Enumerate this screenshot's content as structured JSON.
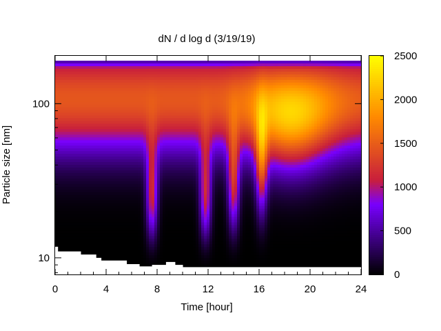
{
  "chart_data": {
    "type": "heatmap",
    "title": "dN / d log d (3/19/19)",
    "xlabel": "Time [hour]",
    "ylabel": "Particle size [nm]",
    "xlim": [
      0,
      24
    ],
    "ylim_nm": [
      7.8,
      190
    ],
    "y_scale": "log",
    "x_ticks": [
      0,
      4,
      8,
      12,
      16,
      20,
      24
    ],
    "x_tick_labels": [
      "0",
      "4",
      "8",
      "12",
      "16",
      "20",
      "24"
    ],
    "y_ticks": [
      10,
      100
    ],
    "y_tick_labels": [
      "10",
      "100"
    ],
    "colorbar": {
      "range": [
        0,
        2500
      ],
      "ticks": [
        0,
        500,
        1000,
        1500,
        2000,
        2500
      ],
      "tick_labels": [
        "0",
        "500",
        "1000",
        "1500",
        "2000",
        "2500"
      ],
      "palette": [
        "#000000",
        "#7800ff",
        "#c81e3c",
        "#ff8a00",
        "#ffff00"
      ]
    },
    "description_points": {
      "core_band_nm": [
        55,
        160
      ],
      "peak_value_approx": 2300,
      "peak_time_hour": 18.5,
      "peak_size_nm": 85,
      "nucleation_dips_hour": [
        7.6,
        11.8,
        14.0,
        16.2
      ]
    }
  }
}
